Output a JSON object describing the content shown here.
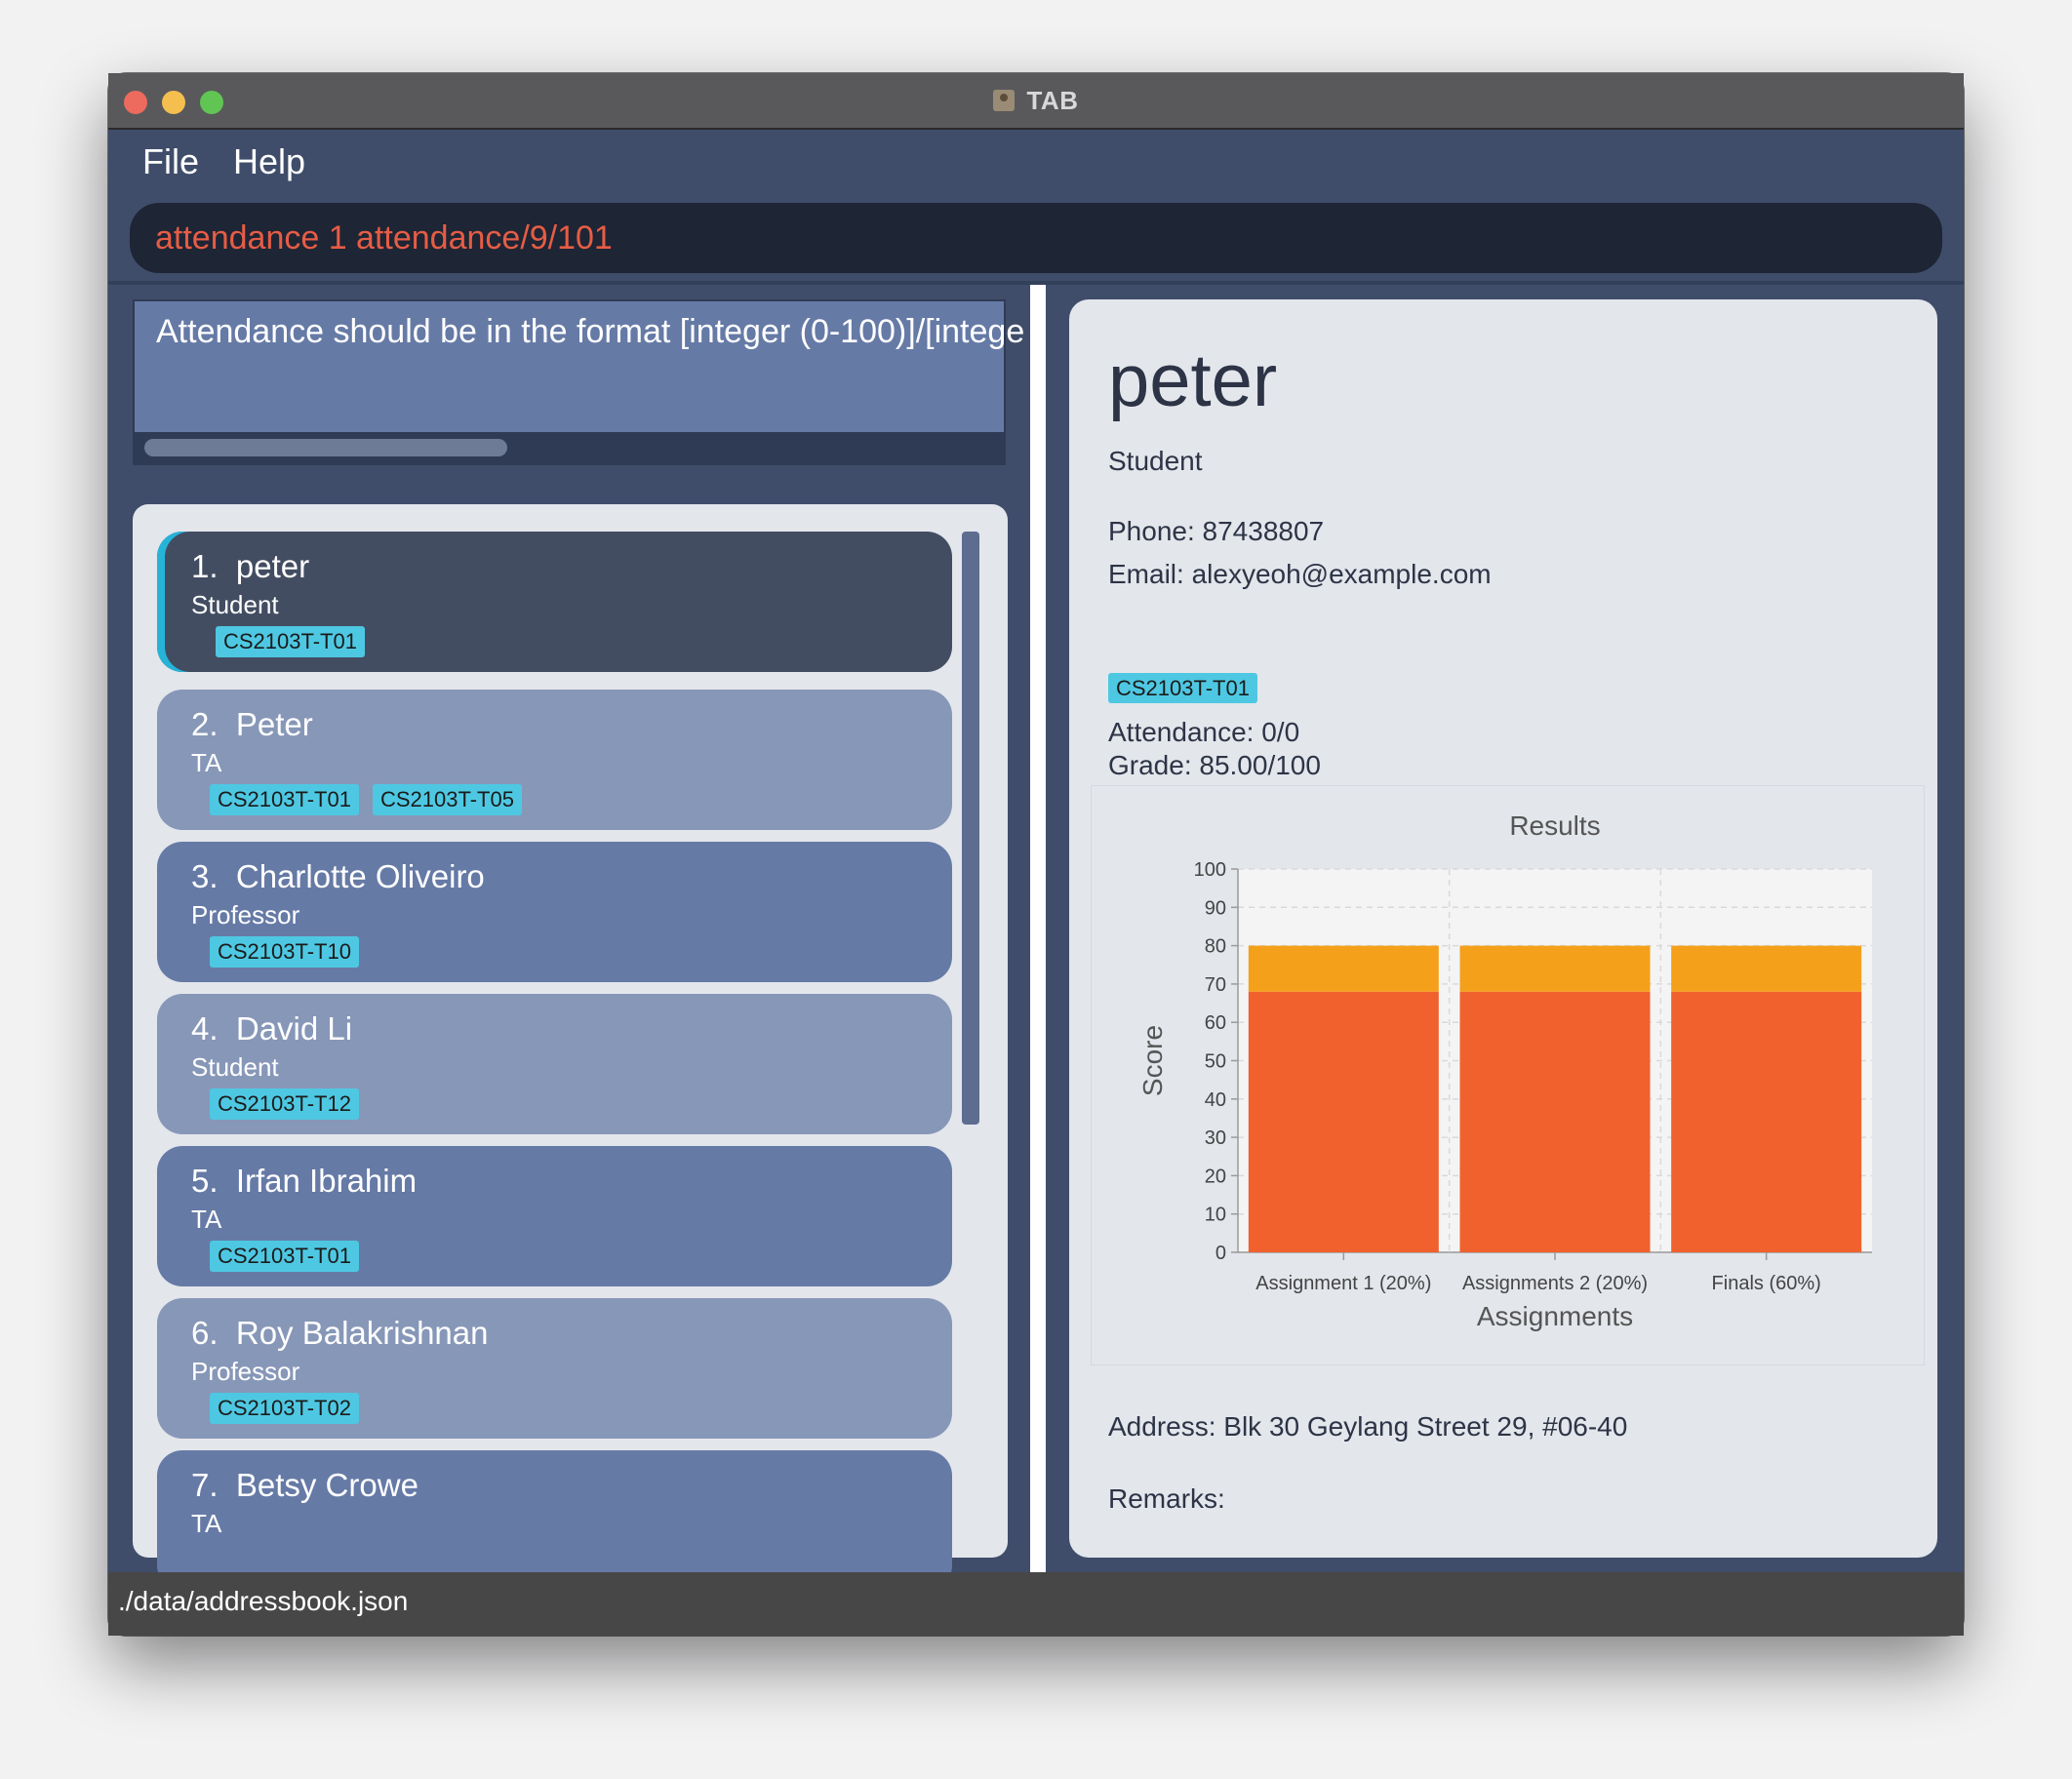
{
  "window": {
    "title": "TAB"
  },
  "menu": {
    "file": "File",
    "help": "Help"
  },
  "command": {
    "value": "attendance 1 attendance/9/101"
  },
  "result": {
    "text": "Attendance should be in the format [integer (0-100)]/[intege"
  },
  "persons": [
    {
      "index": "1.",
      "name": "peter",
      "role": "Student",
      "tags": [
        "CS2103T-T01"
      ],
      "selected": true
    },
    {
      "index": "2.",
      "name": "Peter",
      "role": "TA",
      "tags": [
        "CS2103T-T01",
        "CS2103T-T05"
      ]
    },
    {
      "index": "3.",
      "name": "Charlotte Oliveiro",
      "role": "Professor",
      "tags": [
        "CS2103T-T10"
      ]
    },
    {
      "index": "4.",
      "name": "David Li",
      "role": "Student",
      "tags": [
        "CS2103T-T12"
      ]
    },
    {
      "index": "5.",
      "name": "Irfan Ibrahim",
      "role": "TA",
      "tags": [
        "CS2103T-T01"
      ]
    },
    {
      "index": "6.",
      "name": "Roy Balakrishnan",
      "role": "Professor",
      "tags": [
        "CS2103T-T02"
      ]
    },
    {
      "index": "7.",
      "name": "Betsy Crowe",
      "role": "TA",
      "tags": []
    }
  ],
  "detail": {
    "name": "peter",
    "role": "Student",
    "phone": "Phone: 87438807",
    "email": "Email: alexyeoh@example.com",
    "tag": "CS2103T-T01",
    "attendance": "Attendance: 0/0",
    "grade": "Grade: 85.00/100",
    "address": "Address: Blk 30 Geylang Street 29, #06-40",
    "remarks": "Remarks:"
  },
  "chart_data": {
    "type": "bar",
    "title": "Results",
    "xlabel": "Assignments",
    "ylabel": "Score",
    "categories": [
      "Assignment 1 (20%)",
      "Assignments 2 (20%)",
      "Finals (60%)"
    ],
    "series": [
      {
        "values": [
          68,
          68,
          68
        ],
        "color": "#f0612e"
      },
      {
        "values": [
          12,
          12,
          12
        ],
        "color": "#f5a01a"
      }
    ],
    "stacked": true,
    "ylim": [
      0,
      100
    ],
    "yticks": [
      0,
      10,
      20,
      30,
      40,
      50,
      60,
      70,
      80,
      90,
      100
    ],
    "grid": true
  },
  "status": {
    "path": "./data/addressbook.json"
  }
}
